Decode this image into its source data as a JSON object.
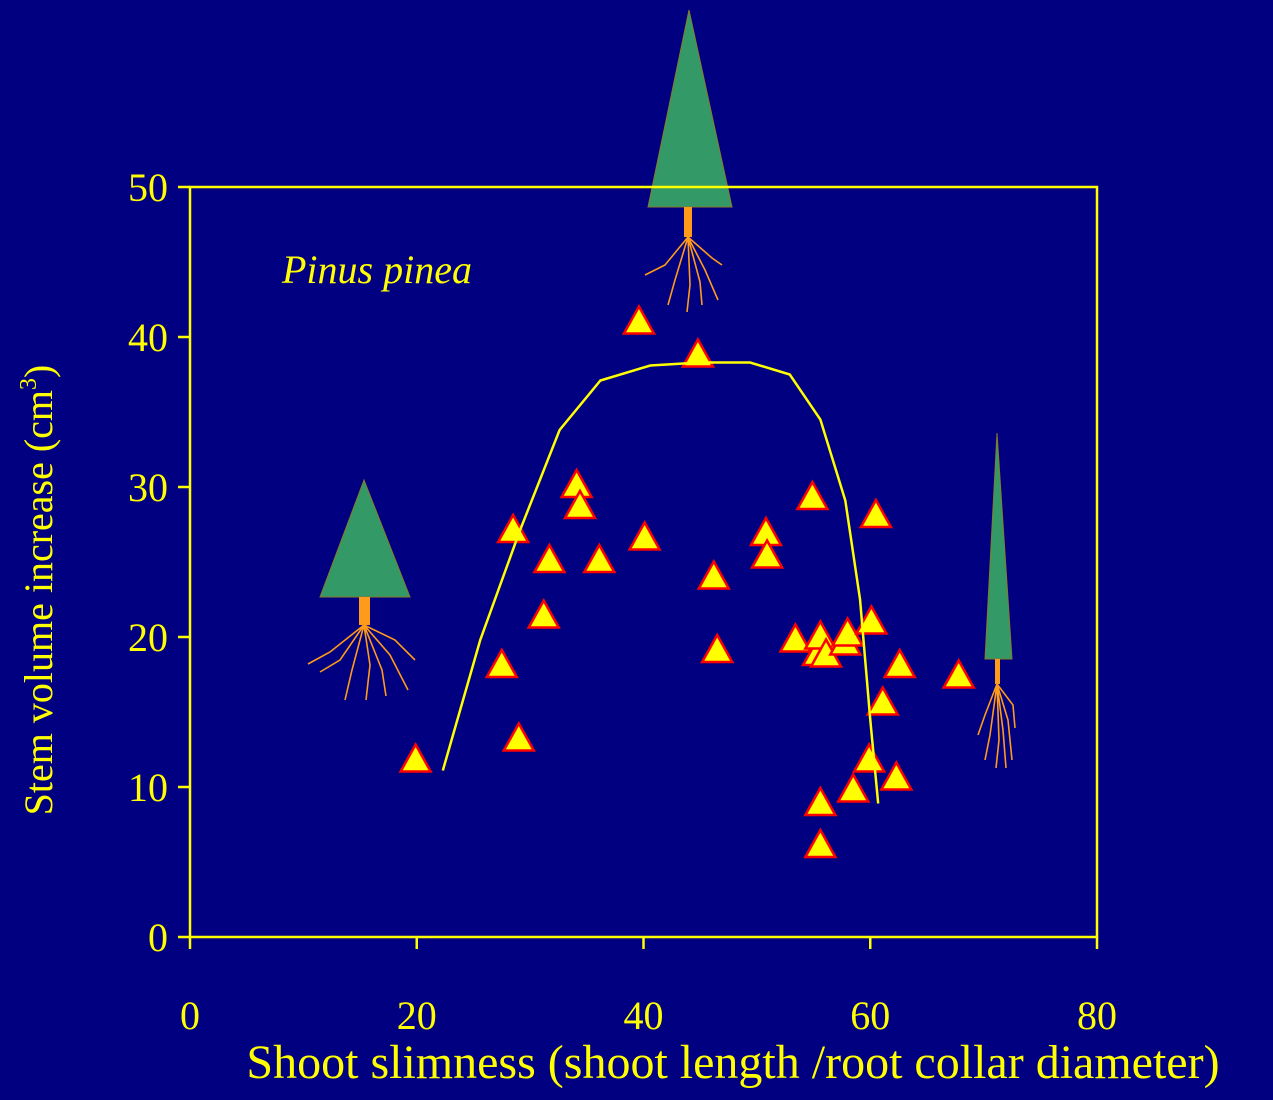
{
  "chart_data": {
    "type": "scatter",
    "annotation": "Pinus pinea",
    "x_label": "Shoot slimness (shoot length /root collar diameter)",
    "y_label": {
      "text": "Stem volume increase (cm",
      "superscript": "3",
      "close": ")"
    },
    "xlim": [
      0,
      80
    ],
    "xticks": [
      0,
      20,
      40,
      60,
      80
    ],
    "ylim": [
      0,
      50
    ],
    "yticks": [
      0,
      10,
      20,
      30,
      40,
      50
    ],
    "series": [
      {
        "type": "scatter",
        "color": "#ffff00",
        "edge_color": "#ff0000",
        "x": [
          19.9,
          27.5,
          28.5,
          29.0,
          31.2,
          31.7,
          34.1,
          34.4,
          36.1,
          39.6,
          40.1,
          44.8,
          46.2,
          46.5,
          50.8,
          50.9,
          53.4,
          54.9,
          55.4,
          55.6,
          56.1,
          55.6,
          55.6,
          57.8,
          58.0,
          58.5,
          60.1,
          60.5,
          59.9,
          61.1,
          62.3,
          62.6,
          67.8
        ],
        "values": [
          11.7,
          18.0,
          27.0,
          13.1,
          21.3,
          25.0,
          30.0,
          28.6,
          25.0,
          40.9,
          26.5,
          38.7,
          23.9,
          19.0,
          26.8,
          25.3,
          19.7,
          29.2,
          18.8,
          19.9,
          18.7,
          8.8,
          6.0,
          19.5,
          20.1,
          9.7,
          20.9,
          28.0,
          11.7,
          15.5,
          10.5,
          18.0,
          17.3
        ]
      },
      {
        "type": "line",
        "color": "#ffff00",
        "x": [
          22.3,
          25.6,
          29.1,
          32.6,
          36.2,
          40.6,
          45.0,
          49.4,
          52.9,
          55.6,
          57.8,
          59.1,
          60.0,
          60.7
        ],
        "values": [
          11.1,
          19.8,
          27.1,
          33.8,
          37.1,
          38.1,
          38.3,
          38.3,
          37.5,
          34.5,
          29.1,
          22.5,
          14.5,
          8.9
        ]
      }
    ]
  }
}
